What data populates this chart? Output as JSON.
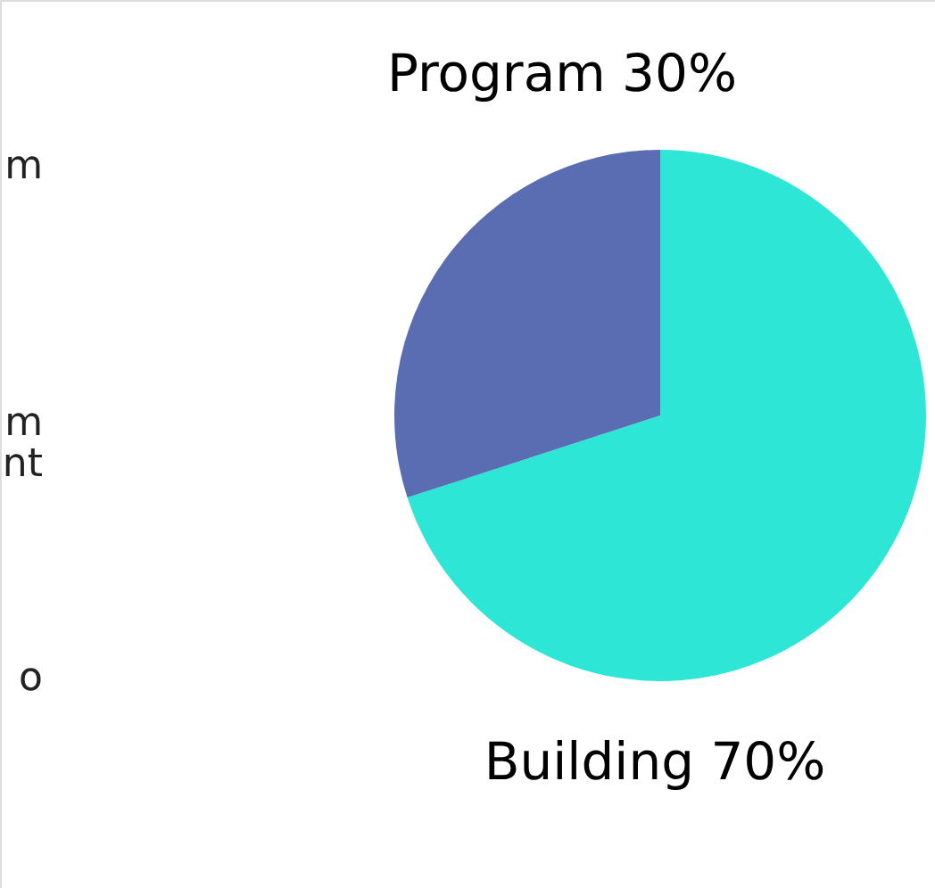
{
  "chart_data": {
    "type": "pie",
    "categories": [
      "Building",
      "Program"
    ],
    "values": [
      70,
      30
    ],
    "colors": [
      "#2ee6d6",
      "#5a6db3"
    ],
    "value_labels": [
      "70%",
      "30%"
    ],
    "annotations": [
      "m",
      "m",
      "nt",
      "o"
    ]
  }
}
